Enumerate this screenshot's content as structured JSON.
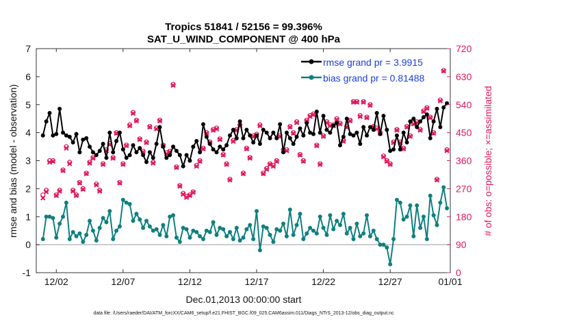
{
  "chart_data": {
    "type": "line",
    "title": "Tropics 51841 / 52156 = 99.396%",
    "subtitle": "SAT_U_WIND_COMPONENT @ 400 hPa",
    "xlabel": "Dec.01,2013 00:00:00 start",
    "ylabel": "rmse and bias (model - observation)",
    "y2label": "# of obs: o=possible; ×=assimilated",
    "footnote": "data file: /Users/raeder/DAI/ATM_forcXX/CAM6_setup/f.e21.FHIST_BGC.f09_025.CAM6assim.011/Diags_NTrS_2013-12/obs_diag_output.nc",
    "xlim": [
      0.5,
      31.5
    ],
    "ylim": [
      -1,
      7
    ],
    "y2lim": [
      0,
      720
    ],
    "x_ticks": [
      2,
      7,
      12,
      17,
      22,
      27,
      32
    ],
    "x_tick_labels": [
      "12/02",
      "12/07",
      "12/12",
      "12/17",
      "12/22",
      "12/27",
      "01/01"
    ],
    "y_ticks": [
      "-1",
      "0",
      "1",
      "2",
      "3",
      "4",
      "5",
      "6",
      "7"
    ],
    "y2_ticks": [
      "0",
      "90",
      "180",
      "270",
      "360",
      "450",
      "540",
      "630",
      "720"
    ],
    "x": [
      1.0,
      1.25,
      1.5,
      1.75,
      2.0,
      2.25,
      2.5,
      2.75,
      3.0,
      3.25,
      3.5,
      3.75,
      4.0,
      4.25,
      4.5,
      4.75,
      5.0,
      5.25,
      5.5,
      5.75,
      6.0,
      6.25,
      6.5,
      6.75,
      7.0,
      7.25,
      7.5,
      7.75,
      8.0,
      8.25,
      8.5,
      8.75,
      9.0,
      9.25,
      9.5,
      9.75,
      10.0,
      10.25,
      10.5,
      10.75,
      11.0,
      11.25,
      11.5,
      11.75,
      12.0,
      12.25,
      12.5,
      12.75,
      13.0,
      13.25,
      13.5,
      13.75,
      14.0,
      14.25,
      14.5,
      14.75,
      15.0,
      15.25,
      15.5,
      15.75,
      16.0,
      16.25,
      16.5,
      16.75,
      17.0,
      17.25,
      17.5,
      17.75,
      18.0,
      18.25,
      18.5,
      18.75,
      19.0,
      19.25,
      19.5,
      19.75,
      20.0,
      20.25,
      20.5,
      20.75,
      21.0,
      21.25,
      21.5,
      21.75,
      22.0,
      22.25,
      22.5,
      22.75,
      23.0,
      23.25,
      23.5,
      23.75,
      24.0,
      24.25,
      24.5,
      24.75,
      25.0,
      25.25,
      25.5,
      25.75,
      26.0,
      26.25,
      26.5,
      26.75,
      27.0,
      27.25,
      27.5,
      27.75,
      28.0,
      28.25,
      28.5,
      28.75,
      29.0,
      29.25,
      29.5,
      29.75,
      30.0,
      30.25,
      30.5,
      30.75,
      31.0,
      31.25
    ],
    "series": [
      {
        "name": "rmse grand pr = 3.9915",
        "color": "#000000",
        "values": [
          3.9,
          4.4,
          4.7,
          3.9,
          3.95,
          4.85,
          4.0,
          3.9,
          3.85,
          3.65,
          3.95,
          3.3,
          3.75,
          3.8,
          3.5,
          3.3,
          3.2,
          3.35,
          3.6,
          3.1,
          4.0,
          3.3,
          3.7,
          4.0,
          3.4,
          3.1,
          3.2,
          3.55,
          3.3,
          3.45,
          3.2,
          2.95,
          3.3,
          3.1,
          3.6,
          4.2,
          3.5,
          3.1,
          3.2,
          3.5,
          3.35,
          3.2,
          2.8,
          3.2,
          3.0,
          3.5,
          3.7,
          3.3,
          4.3,
          3.85,
          3.6,
          3.4,
          3.3,
          3.5,
          3.4,
          3.55,
          3.9,
          4.1,
          3.8,
          4.4,
          3.8,
          4.1,
          3.9,
          3.65,
          3.9,
          3.6,
          4.1,
          4.0,
          3.8,
          4.0,
          3.8,
          4.3,
          3.3,
          4.0,
          3.8,
          3.6,
          3.85,
          4.15,
          3.9,
          4.35,
          4.0,
          3.95,
          4.75,
          4.0,
          4.6,
          4.1,
          4.0,
          4.25,
          4.35,
          3.55,
          3.85,
          4.5,
          3.95,
          3.9,
          4.0,
          3.6,
          4.2,
          3.9,
          4.2,
          4.1,
          4.7,
          3.95,
          4.6,
          4.1,
          3.35,
          3.4,
          3.9,
          3.4,
          4.0,
          3.65,
          4.4,
          4.5,
          4.2,
          4.4,
          4.55,
          4.65,
          3.8,
          4.4,
          4.85,
          4.2,
          4.9,
          5.05
        ]
      },
      {
        "name": "bias grand pr = 0.81488",
        "color": "#0f7f7f",
        "values": [
          0.2,
          1.0,
          1.0,
          0.95,
          0.25,
          0.75,
          1.0,
          1.5,
          0.2,
          0.45,
          0.3,
          0.4,
          0.1,
          0.35,
          0.85,
          0.5,
          0.15,
          0.6,
          0.95,
          0.8,
          1.2,
          0.2,
          0.5,
          0.65,
          1.6,
          1.5,
          1.45,
          0.85,
          1.1,
          0.9,
          0.6,
          0.85,
          0.65,
          0.5,
          0.55,
          0.35,
          0.7,
          0.3,
          1.0,
          1.05,
          0.25,
          0.1,
          0.6,
          0.55,
          0.25,
          0.5,
          0.45,
          0.3,
          0.2,
          0.5,
          0.45,
          0.8,
          0.35,
          0.6,
          0.55,
          0.3,
          0.45,
          0.2,
          0.6,
          0.15,
          0.25,
          0.55,
          0.7,
          0.2,
          1.2,
          -0.2,
          0.65,
          0.6,
          0.35,
          0.1,
          0.55,
          0.5,
          0.75,
          0.3,
          1.25,
          0.35,
          0.7,
          1.1,
          0.2,
          0.4,
          0.6,
          0.5,
          0.4,
          1.0,
          0.6,
          0.35,
          1.05,
          0.55,
          0.85,
          0.7,
          1.1,
          0.4,
          0.6,
          0.2,
          0.75,
          0.3,
          0.4,
          1.05,
          0.3,
          0.5,
          0.2,
          0.0,
          0.0,
          -0.1,
          -0.7,
          0.2,
          1.6,
          1.5,
          0.9,
          1.0,
          1.4,
          0.3,
          1.4,
          0.6,
          1.0,
          0.2,
          1.75,
          1.05,
          0.7,
          1.5,
          2.05,
          1.3
        ]
      }
    ],
    "obs_possible": [
      250,
      265,
      360,
      360,
      250,
      265,
      330,
      405,
      355,
      265,
      250,
      290,
      270,
      320,
      355,
      370,
      285,
      265,
      350,
      395,
      415,
      370,
      450,
      290,
      350,
      410,
      475,
      515,
      490,
      430,
      390,
      420,
      470,
      355,
      465,
      490,
      410,
      385,
      390,
      605,
      340,
      280,
      255,
      245,
      250,
      260,
      345,
      360,
      400,
      450,
      420,
      460,
      465,
      430,
      380,
      350,
      300,
      425,
      460,
      475,
      320,
      400,
      370,
      440,
      445,
      475,
      320,
      335,
      350,
      345,
      360,
      440,
      395,
      395,
      470,
      450,
      485,
      380,
      360,
      490,
      505,
      510,
      410,
      350,
      440,
      485,
      475,
      475,
      495,
      480,
      425,
      470,
      490,
      550,
      550,
      505,
      550,
      500,
      540,
      470,
      465,
      450,
      375,
      360,
      350,
      420,
      460,
      420,
      400,
      470,
      440,
      480,
      485,
      460,
      520,
      530,
      500,
      450,
      300,
      555,
      650,
      395
    ],
    "obs_assimilated": [
      240,
      260,
      355,
      358,
      248,
      262,
      328,
      400,
      350,
      262,
      248,
      288,
      268,
      318,
      352,
      368,
      282,
      262,
      348,
      392,
      412,
      368,
      448,
      288,
      348,
      408,
      472,
      512,
      488,
      428,
      388,
      418,
      468,
      352,
      462,
      488,
      408,
      382,
      388,
      602,
      338,
      278,
      252,
      242,
      248,
      258,
      342,
      358,
      398,
      448,
      418,
      458,
      462,
      428,
      378,
      348,
      298,
      422,
      458,
      472,
      318,
      398,
      368,
      438,
      442,
      472,
      318,
      332,
      348,
      342,
      358,
      438,
      392,
      392,
      468,
      448,
      482,
      378,
      358,
      488,
      502,
      508,
      408,
      348,
      438,
      482,
      472,
      472,
      492,
      478,
      422,
      468,
      488,
      548,
      548,
      502,
      548,
      498,
      538,
      468,
      462,
      448,
      372,
      358,
      348,
      418,
      458,
      418,
      398,
      468,
      438,
      478,
      482,
      458,
      518,
      528,
      498,
      448,
      298,
      552,
      648,
      392
    ]
  },
  "colors": {
    "rmse": "#000000",
    "bias": "#0f7f7f",
    "obs": "#e0185a",
    "zero_line": "#bbbbbb",
    "legend_text": "#1a3fd6"
  }
}
